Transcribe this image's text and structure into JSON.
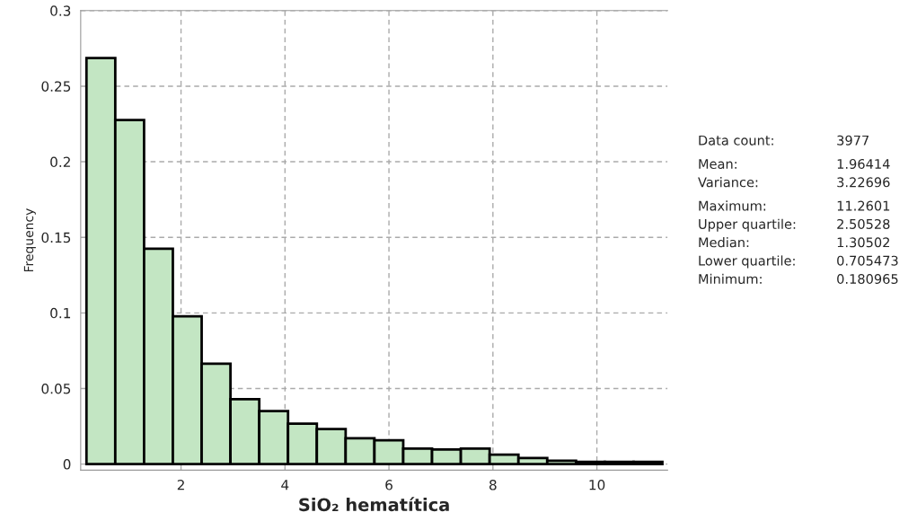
{
  "chart_data": {
    "type": "histogram",
    "xlabel": "SiO₂ hematítica",
    "ylabel": "Frequency",
    "bins": [
      0.181,
      0.735,
      1.289,
      1.843,
      2.397,
      2.951,
      3.505,
      4.059,
      4.613,
      5.167,
      5.721,
      6.275,
      6.829,
      7.383,
      7.937,
      8.491,
      9.045,
      9.599,
      10.153,
      10.707,
      11.26
    ],
    "values": [
      0.2686,
      0.2276,
      0.1425,
      0.0978,
      0.0664,
      0.0429,
      0.035,
      0.0267,
      0.0231,
      0.0171,
      0.0157,
      0.0103,
      0.0097,
      0.0103,
      0.0062,
      0.004,
      0.0022,
      0.0014,
      0.0014,
      0.0014
    ],
    "color": "#c3e6c3",
    "xlim": [
      0.07,
      11.36
    ],
    "ylim": [
      -0.004,
      0.3
    ],
    "xticks": [
      2,
      4,
      6,
      8,
      10
    ],
    "yticks": [
      0,
      0.05,
      0.1,
      0.15,
      0.2,
      0.25,
      0.3
    ],
    "grid": true,
    "annotations": [
      "Data count:",
      "3977",
      "Mean:",
      "1.96414",
      "Variance:",
      "3.22696",
      "Maximum:",
      "11.2601",
      "Upper quartile:",
      "2.50528",
      "Median:",
      "1.30502",
      "Lower quartile:",
      "0.705473",
      "Minimum:",
      "0.180965"
    ]
  }
}
